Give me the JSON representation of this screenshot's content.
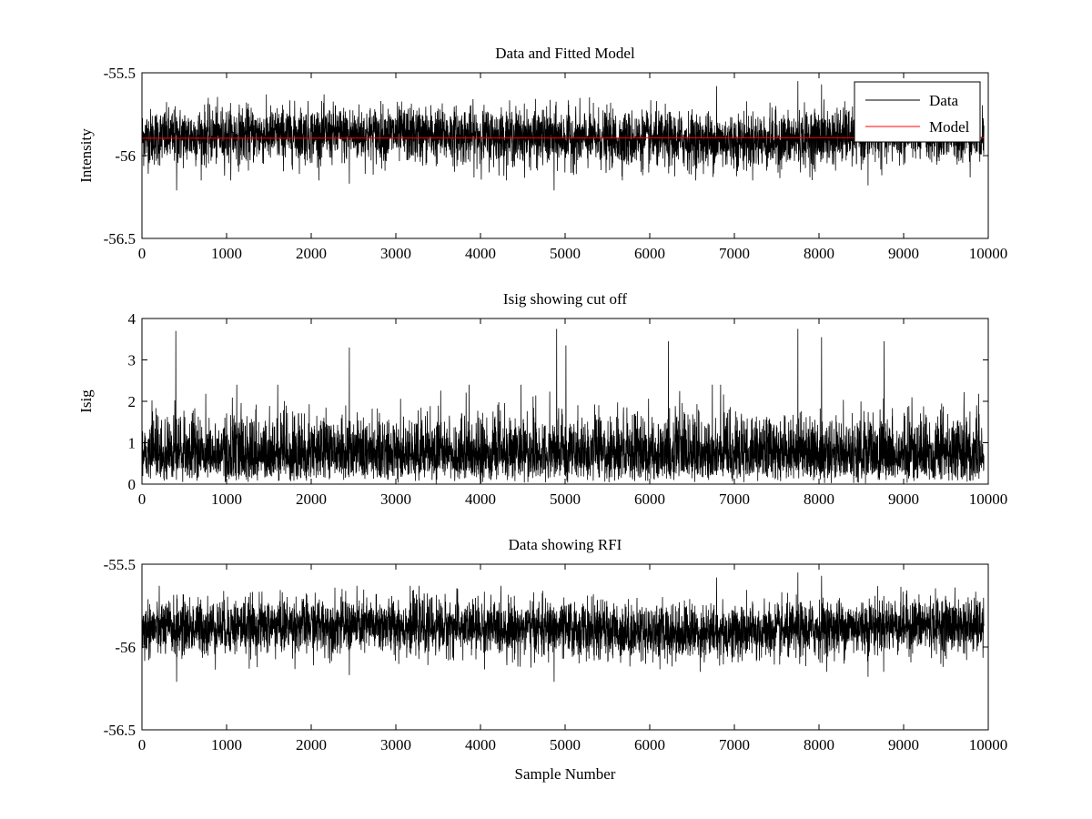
{
  "colors": {
    "data": "#000000",
    "model": "#ff0000"
  },
  "chart_data": [
    {
      "type": "line",
      "title": "Data and Fitted Model",
      "xlabel": "",
      "ylabel": "Intensity",
      "xlim": [
        0,
        10000
      ],
      "ylim": [
        -56.5,
        -55.5
      ],
      "xticks": [
        0,
        1000,
        2000,
        3000,
        4000,
        5000,
        6000,
        7000,
        8000,
        9000,
        10000
      ],
      "yticks": [
        -56.5,
        -56,
        -55.5
      ],
      "legend": {
        "placement": "top-right",
        "entries": [
          "Data",
          "Model"
        ]
      },
      "series": [
        {
          "name": "Data",
          "color": "#000000",
          "sample_count": 9950,
          "baseline": -55.89,
          "typical_range": [
            -56.1,
            -55.68
          ],
          "extremes": [
            [
              410,
              -56.21
            ],
            [
              2450,
              -56.17
            ],
            [
              4870,
              -56.21
            ],
            [
              6790,
              -55.58
            ],
            [
              7750,
              -55.55
            ],
            [
              8030,
              -55.57
            ],
            [
              8580,
              -56.18
            ]
          ]
        },
        {
          "name": "Model",
          "color": "#ff0000",
          "x": [
            0,
            9950
          ],
          "values": [
            -55.895,
            -55.892
          ]
        }
      ]
    },
    {
      "type": "line",
      "title": "Isig showing cut off",
      "xlabel": "",
      "ylabel": "Isig",
      "xlim": [
        0,
        10000
      ],
      "ylim": [
        0,
        4
      ],
      "xticks": [
        0,
        1000,
        2000,
        3000,
        4000,
        5000,
        6000,
        7000,
        8000,
        9000,
        10000
      ],
      "yticks": [
        0,
        1,
        2,
        3,
        4
      ],
      "series": [
        {
          "color": "#000000",
          "sample_count": 9950,
          "typical_range": [
            0,
            2.2
          ],
          "extremes": [
            [
              400,
              3.7
            ],
            [
              2450,
              3.3
            ],
            [
              4900,
              3.75
            ],
            [
              5010,
              3.35
            ],
            [
              6220,
              3.45
            ],
            [
              7750,
              3.75
            ],
            [
              8030,
              3.55
            ],
            [
              8770,
              3.45
            ]
          ]
        }
      ]
    },
    {
      "type": "line",
      "title": "Data showing RFI",
      "xlabel": "Sample Number",
      "ylabel": "",
      "xlim": [
        0,
        10000
      ],
      "ylim": [
        -56.5,
        -55.5
      ],
      "xticks": [
        0,
        1000,
        2000,
        3000,
        4000,
        5000,
        6000,
        7000,
        8000,
        9000,
        10000
      ],
      "yticks": [
        -56.5,
        -56,
        -55.5
      ],
      "series": [
        {
          "color": "#000000",
          "sample_count": 9950,
          "baseline": -55.89,
          "typical_range": [
            -56.1,
            -55.68
          ],
          "extremes": [
            [
              410,
              -56.21
            ],
            [
              2450,
              -56.17
            ],
            [
              4870,
              -56.21
            ],
            [
              6790,
              -55.58
            ],
            [
              7750,
              -55.55
            ],
            [
              8030,
              -55.57
            ],
            [
              8580,
              -56.18
            ]
          ]
        }
      ]
    }
  ]
}
